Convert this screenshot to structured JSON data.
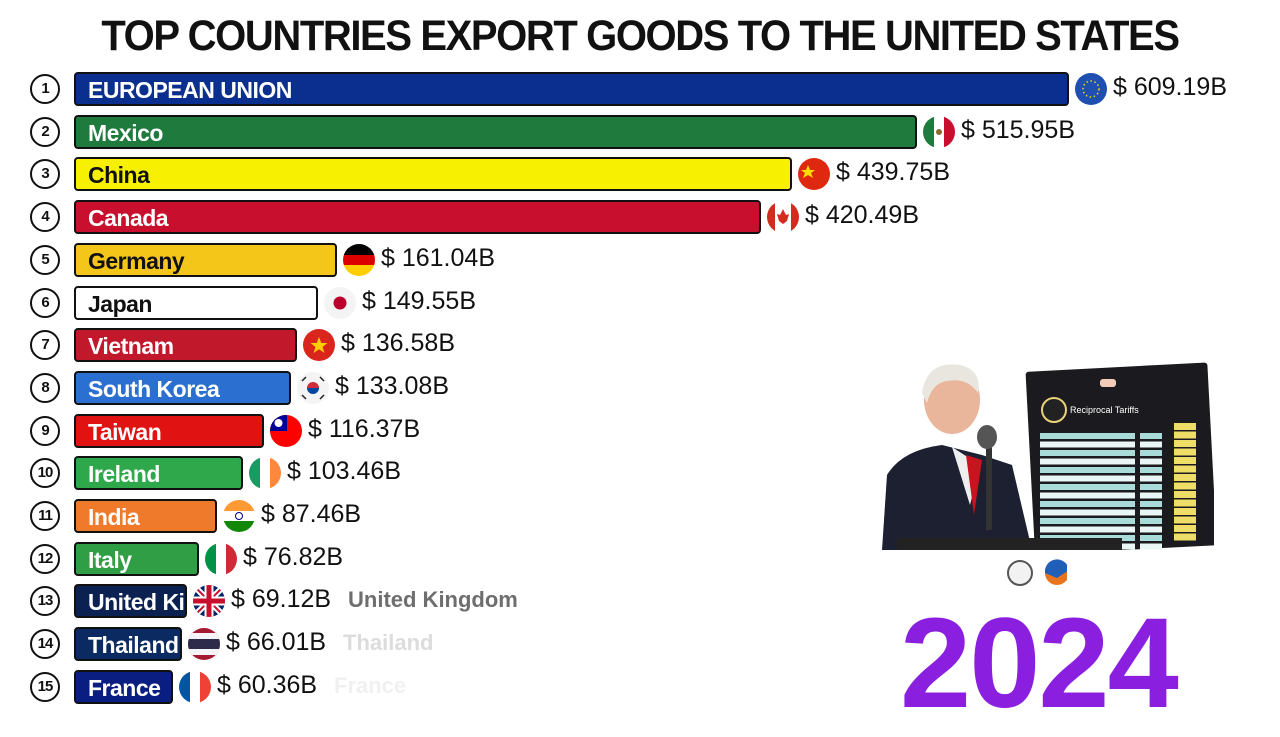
{
  "chart_data": {
    "type": "bar",
    "orientation": "horizontal",
    "title": "TOP COUNTRIES EXPORT GOODS TO THE UNITED STATES",
    "period": "2024",
    "value_prefix": "$ ",
    "value_suffix": "B",
    "bars": [
      {
        "rank": "1",
        "label": "EUROPEAN UNION",
        "value": 609.19,
        "value_text": "$ 609.19B",
        "color": "#0b2f8e",
        "text_color": "#ffffff",
        "flag": "eu"
      },
      {
        "rank": "2",
        "label": "Mexico",
        "value": 515.95,
        "value_text": "$ 515.95B",
        "color": "#1f7a3e",
        "text_color": "#ffffff",
        "flag": "mexico"
      },
      {
        "rank": "3",
        "label": "China",
        "value": 439.75,
        "value_text": "$ 439.75B",
        "color": "#f7f000",
        "text_color": "#111111",
        "flag": "china"
      },
      {
        "rank": "4",
        "label": "Canada",
        "value": 420.49,
        "value_text": "$ 420.49B",
        "color": "#c8102e",
        "text_color": "#ffffff",
        "flag": "canada"
      },
      {
        "rank": "5",
        "label": "Germany",
        "value": 161.04,
        "value_text": "$ 161.04B",
        "color": "#f5c61a",
        "text_color": "#111111",
        "flag": "germany"
      },
      {
        "rank": "6",
        "label": "Japan",
        "value": 149.55,
        "value_text": "$ 149.55B",
        "color": "#ffffff",
        "text_color": "#111111",
        "flag": "japan"
      },
      {
        "rank": "7",
        "label": "Vietnam",
        "value": 136.58,
        "value_text": "$ 136.58B",
        "color": "#c2182b",
        "text_color": "#ffffff",
        "flag": "vietnam"
      },
      {
        "rank": "8",
        "label": "South Korea",
        "value": 133.08,
        "value_text": "$ 133.08B",
        "color": "#2b6fd0",
        "text_color": "#ffffff",
        "flag": "south-korea"
      },
      {
        "rank": "9",
        "label": "Taiwan",
        "value": 116.37,
        "value_text": "$ 116.37B",
        "color": "#e01212",
        "text_color": "#ffffff",
        "flag": "taiwan"
      },
      {
        "rank": "10",
        "label": "Ireland",
        "value": 103.46,
        "value_text": "$ 103.46B",
        "color": "#2ea84b",
        "text_color": "#ffffff",
        "flag": "ireland"
      },
      {
        "rank": "11",
        "label": "India",
        "value": 87.46,
        "value_text": "$ 87.46B",
        "color": "#f07a2c",
        "text_color": "#ffffff",
        "flag": "india"
      },
      {
        "rank": "12",
        "label": "Italy",
        "value": 76.82,
        "value_text": "$ 76.82B",
        "color": "#2f9e45",
        "text_color": "#ffffff",
        "flag": "italy"
      },
      {
        "rank": "13",
        "label": "United Kingdom",
        "value": 69.12,
        "value_text": "$ 69.12B",
        "color": "#0b2152",
        "text_color": "#ffffff",
        "flag": "uk",
        "trail_label": "United Kingdom",
        "trail_color": "#6e6e6e"
      },
      {
        "rank": "14",
        "label": "Thailand",
        "value": 66.01,
        "value_text": "$ 66.01B",
        "color": "#0c2a62",
        "text_color": "#ffffff",
        "flag": "thailand",
        "trail_label": "Thailand",
        "trail_color": "#dcdcdc"
      },
      {
        "rank": "15",
        "label": "France",
        "value": 60.36,
        "value_text": "$ 60.36B",
        "color": "#0a1e82",
        "text_color": "#ffffff",
        "flag": "france",
        "trail_label": "France",
        "trail_color": "#f0f0f0"
      }
    ],
    "year_color": "#8a1fe0"
  },
  "photo": {
    "board_title": "Reciprocal Tariffs"
  }
}
